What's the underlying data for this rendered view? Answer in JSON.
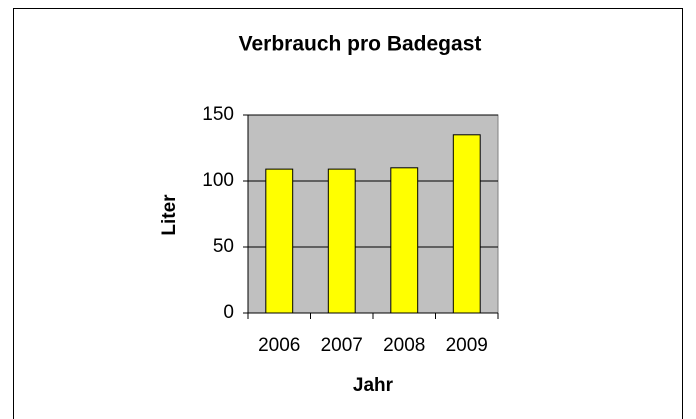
{
  "chart_data": {
    "type": "bar",
    "title": "Verbrauch pro Badegast",
    "xlabel": "Jahr",
    "ylabel": "Liter",
    "categories": [
      "2006",
      "2007",
      "2008",
      "2009"
    ],
    "values": [
      109,
      109,
      110,
      135
    ],
    "color": "#ffff00",
    "ylim": [
      0,
      150
    ],
    "yticks": [
      0,
      50,
      100,
      150
    ],
    "grid": true
  }
}
